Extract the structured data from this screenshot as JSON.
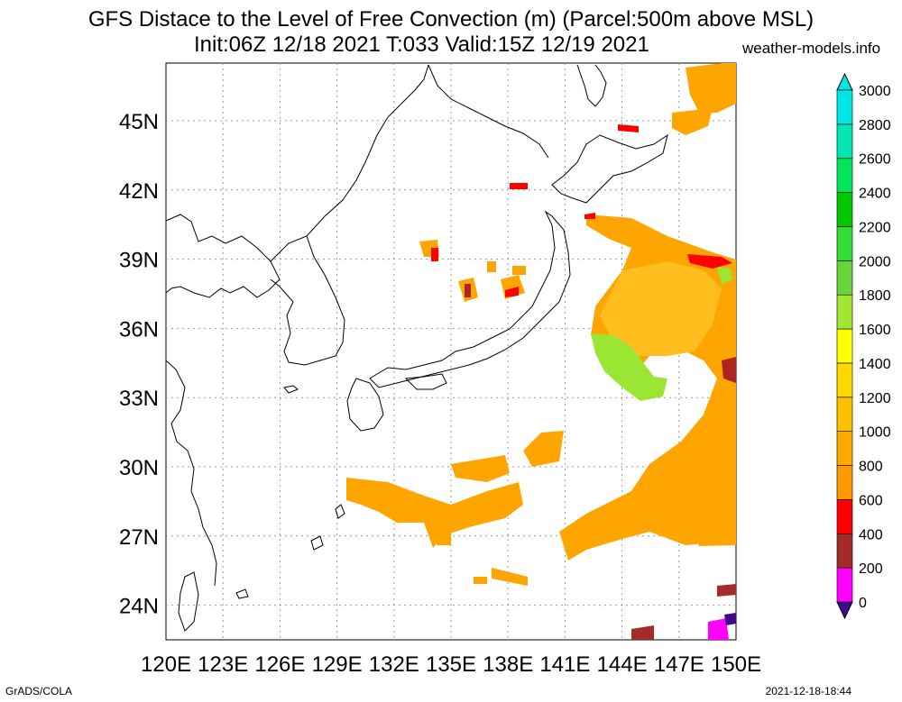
{
  "title": {
    "line1": "GFS Distace to the Level of Free Convection (m) (Parcel:500m above MSL)",
    "line2": "Init:06Z 12/18 2021 T:033 Valid:15Z 12/19 2021",
    "site": "weather-models.info"
  },
  "footer": {
    "left": "GrADS/COLA",
    "right": "2021-12-18-18:44"
  },
  "map": {
    "lon_range": [
      120,
      150
    ],
    "lat_range": [
      22.5,
      47.5
    ],
    "lon_ticks": [
      "120E",
      "123E",
      "126E",
      "129E",
      "132E",
      "135E",
      "138E",
      "141E",
      "144E",
      "147E",
      "150E"
    ],
    "lat_ticks": [
      "24N",
      "27N",
      "30N",
      "33N",
      "36N",
      "39N",
      "42N",
      "45N"
    ],
    "grid": true
  },
  "colorbar": {
    "labels": [
      "0",
      "200",
      "400",
      "600",
      "800",
      "1000",
      "1200",
      "1400",
      "1600",
      "1800",
      "2000",
      "2200",
      "2400",
      "2600",
      "2800",
      "3000"
    ],
    "colors": [
      "#3c0a8c",
      "#ff00ff",
      "#a52a2a",
      "#ff0000",
      "#ff9900",
      "#ffaa00",
      "#ffc000",
      "#ffd900",
      "#ffff00",
      "#a0e632",
      "#6ad23c",
      "#32dc32",
      "#00c800",
      "#00e65a",
      "#00e6b4",
      "#00e6e6"
    ]
  }
}
